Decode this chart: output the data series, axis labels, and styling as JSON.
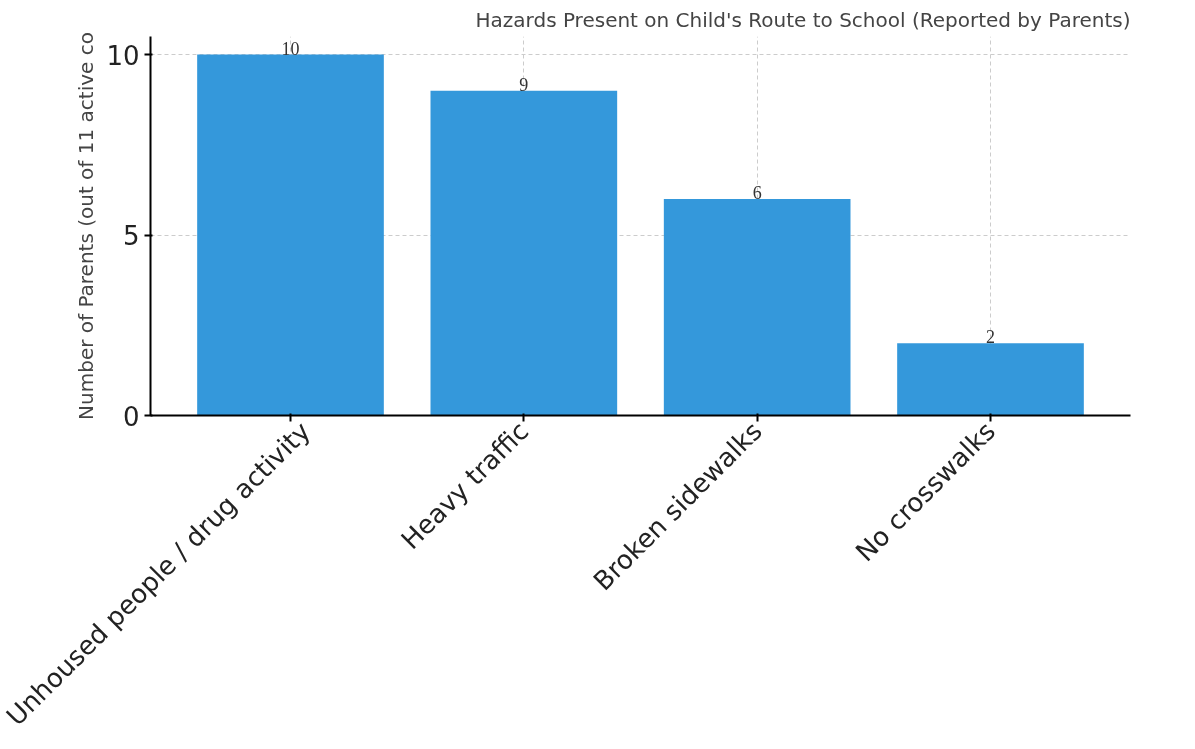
{
  "chart_data": {
    "type": "bar",
    "title": "Hazards Present on Child's Route to School (Reported by Parents)",
    "ylabel": "Number of Parents (out of 11 active co",
    "categories": [
      "Unhoused people / drug activity",
      "Heavy traffic",
      "Broken sidewalks",
      "No crosswalks"
    ],
    "values": [
      10,
      9,
      6,
      2
    ],
    "color": "#3498db",
    "ylim": [
      0,
      10.5
    ],
    "yticks": [
      0,
      5,
      10
    ],
    "grid": true,
    "data_labels": true
  }
}
